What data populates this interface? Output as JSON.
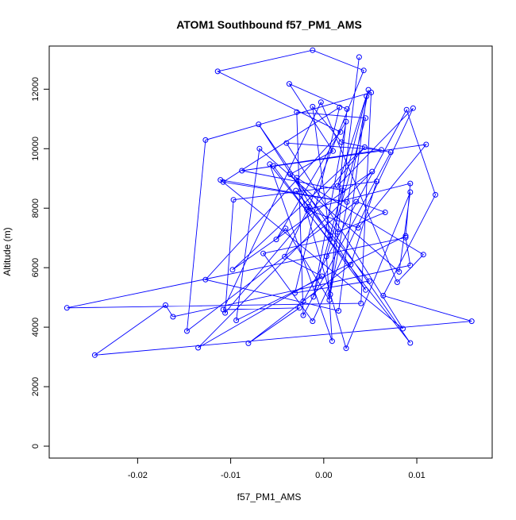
{
  "chart_data": {
    "type": "scatter",
    "title": "ATOM1 Southbound f57_PM1_AMS",
    "xlabel": "f57_PM1_AMS",
    "ylabel": "Altitude (m)",
    "xlim": [
      -0.0295,
      0.0181
    ],
    "ylim": [
      -400,
      13450
    ],
    "xticks": [
      -0.02,
      -0.01,
      0.0,
      0.01
    ],
    "xtick_labels": [
      "-0.02",
      "-0.01",
      "0.00",
      "0.01"
    ],
    "yticks": [
      0,
      2000,
      4000,
      6000,
      8000,
      10000,
      12000
    ],
    "ytick_labels": [
      "0",
      "2000",
      "4000",
      "6000",
      "8000",
      "10000",
      "12000"
    ],
    "connected": true,
    "marker": "open-circle",
    "grid": false,
    "series_color": "#0000ff",
    "points": [
      [
        0.0038,
        13080
      ],
      [
        0.0007,
        5100
      ],
      [
        0.0048,
        11980
      ],
      [
        0.0015,
        8750
      ],
      [
        0.0096,
        11360
      ],
      [
        -0.0012,
        4200
      ],
      [
        -0.0065,
        6480
      ],
      [
        0.0007,
        6960
      ],
      [
        -0.0012,
        11410
      ],
      [
        0.0019,
        10220
      ],
      [
        0.0072,
        9880
      ],
      [
        -0.0022,
        4400
      ],
      [
        -0.0029,
        11230
      ],
      [
        0.0045,
        11030
      ],
      [
        0.0003,
        6380
      ],
      [
        0.0009,
        3530
      ],
      [
        -0.0058,
        9480
      ],
      [
        0.0093,
        3470
      ],
      [
        -0.007,
        10820
      ],
      [
        0.0045,
        5250
      ],
      [
        -0.0054,
        9420
      ],
      [
        0.0062,
        9960
      ],
      [
        -0.004,
        10190
      ],
      [
        0.0085,
        3950
      ],
      [
        -0.0111,
        8950
      ],
      [
        0.0025,
        8210
      ],
      [
        -0.0108,
        8880
      ],
      [
        0.0017,
        11390
      ],
      [
        -0.0031,
        5150
      ],
      [
        0.0049,
        5550
      ],
      [
        -0.003,
        8590
      ],
      [
        0.0007,
        7080
      ],
      [
        0.0046,
        11760
      ],
      [
        0.0016,
        4550
      ],
      [
        -0.0127,
        5600
      ],
      [
        0.0018,
        10560
      ],
      [
        -0.0114,
        12600
      ],
      [
        -0.0012,
        13310
      ],
      [
        0.0043,
        12630
      ],
      [
        -0.0016,
        8050
      ],
      [
        -0.0042,
        6370
      ],
      [
        -0.0002,
        5710
      ],
      [
        -0.0135,
        3310
      ],
      [
        0.0052,
        9230
      ],
      [
        -0.0098,
        5930
      ],
      [
        0.0044,
        10050
      ],
      [
        -0.0106,
        4480
      ],
      [
        -0.0097,
        8280
      ],
      [
        0.0057,
        8900
      ],
      [
        0.0029,
        6100
      ],
      [
        -0.0081,
        3460
      ],
      [
        -0.0026,
        4650
      ],
      [
        -0.0108,
        4590
      ],
      [
        -0.0003,
        11560
      ],
      [
        0.0079,
        5510
      ],
      [
        0.0107,
        6440
      ],
      [
        -0.0029,
        9020
      ],
      [
        0.0024,
        3290
      ],
      [
        0.0093,
        8540
      ],
      [
        0.0081,
        5860
      ],
      [
        -0.0069,
        10000
      ],
      [
        -0.0094,
        4230
      ],
      [
        0.0088,
        7070
      ],
      [
        0.0093,
        8830
      ],
      [
        -0.0018,
        7950
      ],
      [
        0.0037,
        7340
      ],
      [
        0.011,
        10140
      ],
      [
        -0.0088,
        9260
      ],
      [
        0.002,
        8600
      ],
      [
        -0.0011,
        5020
      ],
      [
        0.0024,
        10910
      ],
      [
        -0.0051,
        6950
      ],
      [
        -0.0041,
        7320
      ],
      [
        0.0006,
        4910
      ],
      [
        0.0025,
        11330
      ],
      [
        -0.0037,
        12180
      ],
      [
        0.001,
        9920
      ],
      [
        -0.0036,
        9140
      ],
      [
        0.0015,
        7200
      ],
      [
        0.0066,
        7860
      ],
      [
        0.0035,
        8220
      ],
      [
        -0.0147,
        3870
      ],
      [
        -0.0127,
        10290
      ],
      [
        0.0051,
        11890
      ],
      [
        0.004,
        4800
      ],
      [
        -0.0276,
        4650
      ],
      [
        0.0088,
        7010
      ],
      [
        0.0093,
        6080
      ],
      [
        -0.0162,
        4350
      ],
      [
        -0.017,
        4740
      ],
      [
        -0.0246,
        3060
      ],
      [
        0.0159,
        4200
      ],
      [
        0.0064,
        5060
      ],
      [
        0.012,
        8450
      ],
      [
        0.0089,
        11310
      ],
      [
        -0.0022,
        4870
      ]
    ]
  }
}
